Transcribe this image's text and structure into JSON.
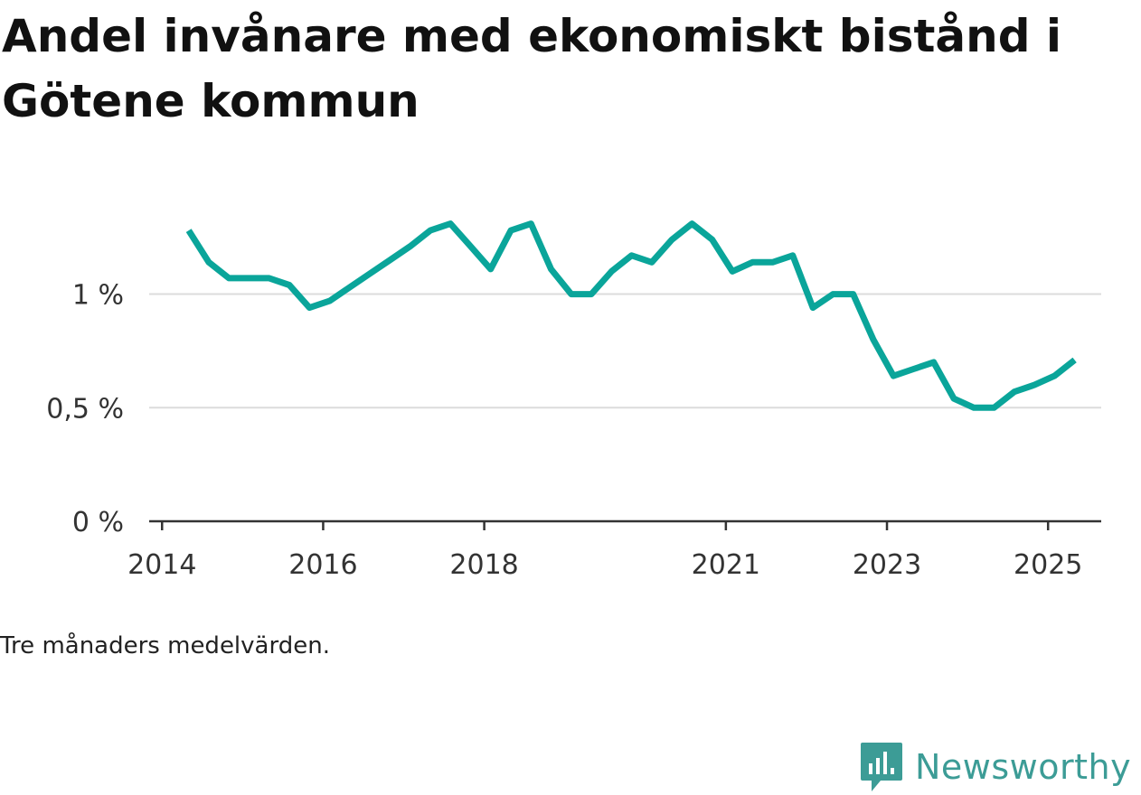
{
  "chart_data": {
    "type": "line",
    "title": "Andel invånare med ekonomiskt bistånd i Götene kommun",
    "note": "Tre månaders medelvärden.",
    "ylabel": "",
    "xlabel": "",
    "yticks": [
      {
        "value": 0,
        "label": "0 %"
      },
      {
        "value": 0.5,
        "label": "0,5 %"
      },
      {
        "value": 1,
        "label": "1 %"
      }
    ],
    "xticks": [
      {
        "value": 2014.0,
        "label": "2014"
      },
      {
        "value": 2016.0,
        "label": "2016"
      },
      {
        "value": 2018.0,
        "label": "2018"
      },
      {
        "value": 2021.0,
        "label": "2021"
      },
      {
        "value": 2023.0,
        "label": "2023"
      },
      {
        "value": 2025.0,
        "label": "2025"
      }
    ],
    "xlim": [
      2013.84,
      2025.66
    ],
    "ylim": [
      0,
      1.38
    ],
    "grid": true,
    "series": [
      {
        "color": "#0aa59a",
        "points": [
          [
            2014.33,
            1.28
          ],
          [
            2014.58,
            1.14
          ],
          [
            2014.83,
            1.07
          ],
          [
            2015.08,
            1.07
          ],
          [
            2015.33,
            1.07
          ],
          [
            2015.58,
            1.04
          ],
          [
            2015.83,
            0.94
          ],
          [
            2016.08,
            0.97
          ],
          [
            2016.33,
            1.03
          ],
          [
            2016.58,
            1.09
          ],
          [
            2016.83,
            1.15
          ],
          [
            2017.08,
            1.21
          ],
          [
            2017.33,
            1.28
          ],
          [
            2017.58,
            1.31
          ],
          [
            2017.83,
            1.21
          ],
          [
            2018.08,
            1.11
          ],
          [
            2018.33,
            1.28
          ],
          [
            2018.58,
            1.31
          ],
          [
            2018.83,
            1.11
          ],
          [
            2019.08,
            1.0
          ],
          [
            2019.33,
            1.0
          ],
          [
            2019.58,
            1.1
          ],
          [
            2019.83,
            1.17
          ],
          [
            2020.08,
            1.14
          ],
          [
            2020.33,
            1.24
          ],
          [
            2020.58,
            1.31
          ],
          [
            2020.83,
            1.24
          ],
          [
            2021.08,
            1.1
          ],
          [
            2021.33,
            1.14
          ],
          [
            2021.58,
            1.14
          ],
          [
            2021.83,
            1.17
          ],
          [
            2022.08,
            0.94
          ],
          [
            2022.33,
            1.0
          ],
          [
            2022.58,
            1.0
          ],
          [
            2022.83,
            0.8
          ],
          [
            2023.08,
            0.64
          ],
          [
            2023.33,
            0.67
          ],
          [
            2023.58,
            0.7
          ],
          [
            2023.83,
            0.54
          ],
          [
            2024.08,
            0.5
          ],
          [
            2024.33,
            0.5
          ],
          [
            2024.58,
            0.57
          ],
          [
            2024.83,
            0.6
          ],
          [
            2025.08,
            0.64
          ],
          [
            2025.33,
            0.71
          ]
        ]
      }
    ]
  },
  "brand": {
    "name": "Newsworthy",
    "color": "#3c9c96"
  }
}
